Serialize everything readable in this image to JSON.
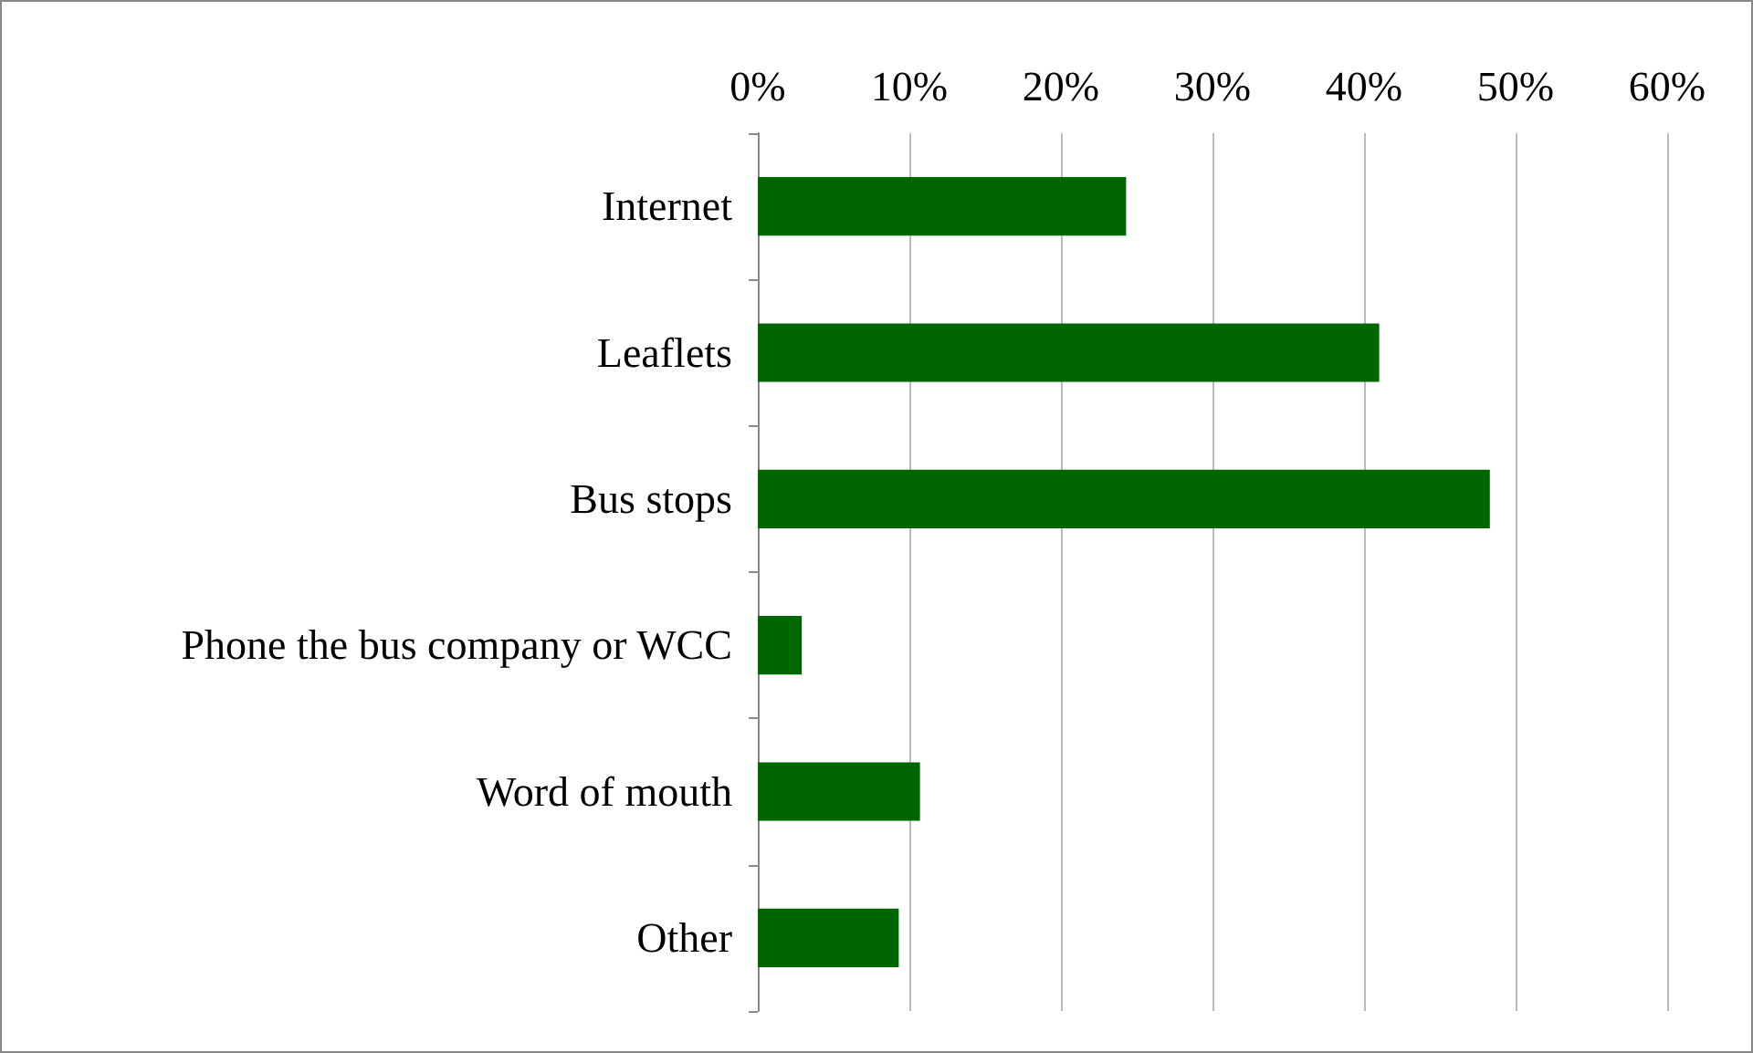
{
  "chart_data": {
    "type": "bar",
    "orientation": "horizontal",
    "categories": [
      "Internet",
      "Leaflets",
      "Bus stops",
      "Phone the bus company or WCC",
      "Word of mouth",
      "Other"
    ],
    "series": [
      {
        "color": "#006600",
        "values": [
          24.3,
          41,
          48.3,
          2.9,
          10.7,
          9.3
        ]
      }
    ],
    "xlim": [
      0,
      60
    ],
    "xticks": [
      {
        "value": 0,
        "label": "0%"
      },
      {
        "value": 10,
        "label": "10%"
      },
      {
        "value": 20,
        "label": "20%"
      },
      {
        "value": 30,
        "label": "30%"
      },
      {
        "value": 40,
        "label": "40%"
      },
      {
        "value": 50,
        "label": "50%"
      },
      {
        "value": 60,
        "label": "60%"
      }
    ],
    "grid": "x"
  }
}
